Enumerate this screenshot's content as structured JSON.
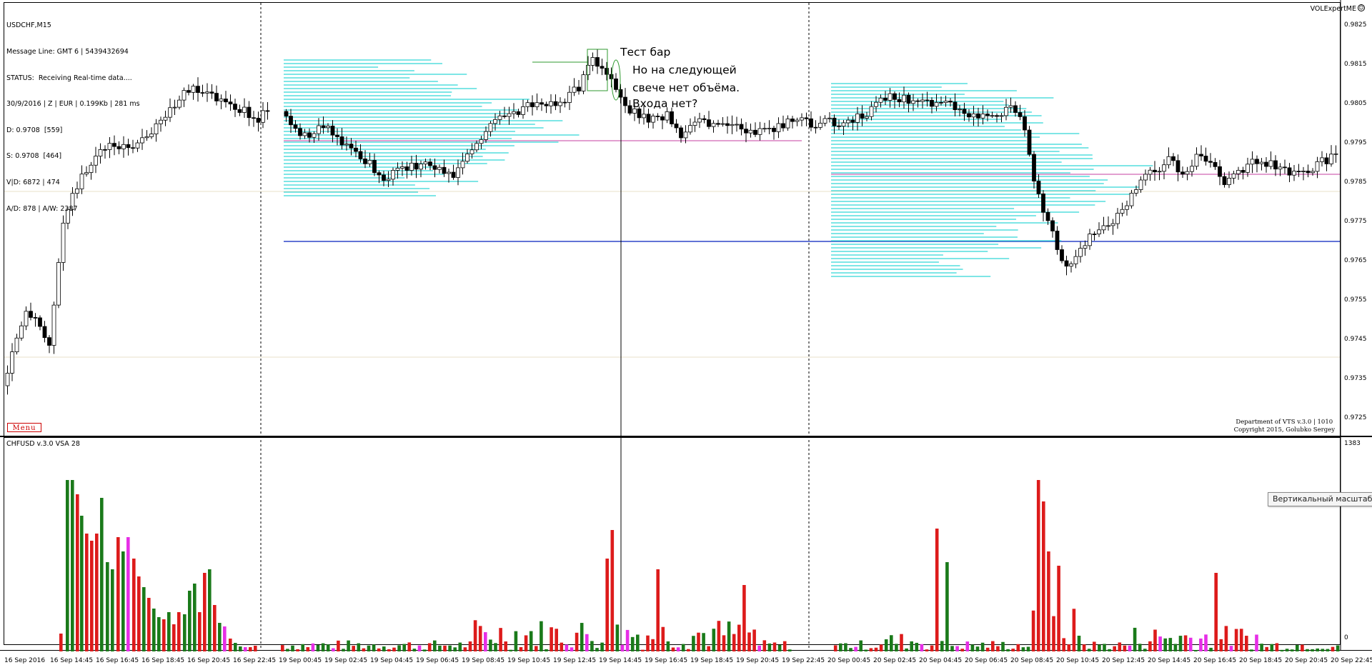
{
  "chart": {
    "symbol_tf": "USDCHF,M15",
    "info_lines": [
      "Message Line: GMT 6 | 5439432694",
      "STATUS:  Receiving Real-time data....",
      "30/9/2016 | Z | EUR | 0.199Kb | 281 ms",
      "D: 0.9708  [559]",
      "S: 0.9708  [464]",
      "V|D: 6872 | 474",
      "A/D: 878 | A/W: 2387"
    ],
    "expert_name": "VOLExpertME",
    "menu_label": "Menu",
    "copyright_lines": [
      "Department of VTS  v.3.0 | 1010",
      "Copyright 2015, Golubko Sergey"
    ],
    "annotation_lines": [
      "Тест бар",
      "Но на следующей",
      "свече нет объёма.",
      "Входа нет?"
    ]
  },
  "indicator": {
    "label": "CHFUSD v.3.0 VSA 28",
    "scale_max": "1383",
    "scale_zero": "0",
    "tooltip": "Вертикальный масштаб"
  },
  "colors": {
    "bull_volume": "#1a7a1a",
    "bear_volume": "#dd1b1b",
    "special_volume": "#e62ee6",
    "volume_profile": "#30d6d6",
    "level_line": "#2f45c8",
    "poc_line": "#c43fa0"
  },
  "price_axis": [
    "0.9825",
    "0.9815",
    "0.9805",
    "0.9795",
    "0.9785",
    "0.9775",
    "0.9765",
    "0.9755",
    "0.9745",
    "0.9735",
    "0.9725"
  ],
  "time_axis": [
    "16 Sep 2016",
    "16 Sep 14:45",
    "16 Sep 16:45",
    "16 Sep 18:45",
    "16 Sep 20:45",
    "16 Sep 22:45",
    "19 Sep 00:45",
    "19 Sep 02:45",
    "19 Sep 04:45",
    "19 Sep 06:45",
    "19 Sep 08:45",
    "19 Sep 10:45",
    "19 Sep 12:45",
    "19 Sep 14:45",
    "19 Sep 16:45",
    "19 Sep 18:45",
    "19 Sep 20:45",
    "19 Sep 22:45",
    "20 Sep 00:45",
    "20 Sep 02:45",
    "20 Sep 04:45",
    "20 Sep 06:45",
    "20 Sep 08:45",
    "20 Sep 10:45",
    "20 Sep 12:45",
    "20 Sep 14:45",
    "20 Sep 16:45",
    "20 Sep 18:45",
    "20 Sep 20:45",
    "20 Sep 22:45"
  ]
}
